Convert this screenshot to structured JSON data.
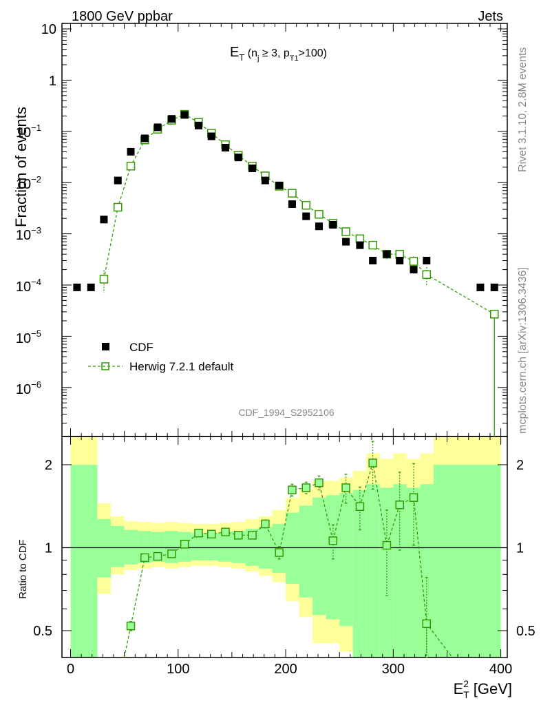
{
  "header": {
    "left": "1800 GeV ppbar",
    "right": "Jets"
  },
  "side_labels": {
    "rivet": "Rivet 3.1.10,  2.8M events",
    "source": "mcplots.cern.ch [arXiv:1306.3436]"
  },
  "analysis_id": "CDF_1994_S2952106",
  "colors": {
    "data": "#000000",
    "mc": "#339900",
    "band_inner": "#99ff99",
    "band_outer": "#ffff99"
  },
  "chart_data": [
    {
      "type": "scatter",
      "title": {
        "main": "E",
        "sub_t": "T",
        "open": " (n",
        "sub_j": "j",
        "cond": " ≥ 3, p",
        "sub_t1": "T1",
        "close": ">100)"
      },
      "ylabel": "Fraction of events",
      "yscale": "log",
      "ylim": [
        1e-07,
        12
      ],
      "xlim": [
        -8,
        406
      ],
      "ytick_labels": {
        "e1": "10",
        "e0": "1",
        "m1": "10",
        "m1e": "−1",
        "m2": "10",
        "m2e": "−2",
        "m3": "10",
        "m3e": "−3",
        "m4": "10",
        "m4e": "−4",
        "m5": "10",
        "m5e": "−5",
        "m6": "10",
        "m6e": "−6"
      },
      "legend": {
        "position": "bottom-left",
        "data_label": "CDF",
        "mc_label": "Herwig 7.2.1 default"
      },
      "series": [
        {
          "name": "CDF",
          "x": [
            6,
            19,
            31,
            44,
            56,
            69,
            81,
            94,
            106,
            119,
            131,
            144,
            156,
            169,
            181,
            194,
            206,
            219,
            231,
            244,
            256,
            269,
            281,
            294,
            306,
            319,
            331,
            381,
            394
          ],
          "y": [
            9e-05,
            9e-05,
            0.0019,
            0.011,
            0.04,
            0.073,
            0.12,
            0.175,
            0.21,
            0.13,
            0.08,
            0.048,
            0.031,
            0.019,
            0.011,
            0.0088,
            0.0038,
            0.0022,
            0.0014,
            0.0015,
            0.0007,
            0.0006,
            0.0003,
            0.0004,
            0.0003,
            0.0002,
            0.0003,
            9e-05,
            9e-05
          ]
        },
        {
          "name": "Herwig 7.2.1 default",
          "x": [
            31,
            44,
            56,
            69,
            81,
            94,
            106,
            119,
            131,
            144,
            156,
            169,
            181,
            194,
            206,
            219,
            231,
            244,
            256,
            269,
            281,
            294,
            306,
            319,
            331,
            394
          ],
          "y": [
            0.00013,
            0.0033,
            0.021,
            0.068,
            0.11,
            0.165,
            0.215,
            0.15,
            0.092,
            0.055,
            0.034,
            0.021,
            0.0135,
            0.0085,
            0.0062,
            0.0036,
            0.0024,
            0.0016,
            0.0011,
            0.0008,
            0.0006,
            0.0004,
            0.0004,
            0.00029,
            0.00016,
            2.7e-05
          ]
        }
      ]
    },
    {
      "type": "scatter",
      "ylabel": "Ratio to CDF",
      "xlabel": {
        "main": "E",
        "sup": "2",
        "sub": "T",
        "unit": " [GeV]"
      },
      "ylim": [
        0.42,
        2.4
      ],
      "xlim": [
        -8,
        406
      ],
      "xtick_labels": [
        "0",
        "100",
        "200",
        "300",
        "400"
      ],
      "xticks": [
        0,
        100,
        200,
        300,
        400
      ],
      "ytick_labels": [
        "0.5",
        "1",
        "2"
      ],
      "yticks": [
        0.5,
        1,
        2
      ],
      "bins": [
        0,
        25,
        37.5,
        50,
        62.5,
        75,
        87.5,
        100,
        112.5,
        125,
        137.5,
        150,
        162.5,
        175,
        187.5,
        200,
        212.5,
        225,
        237.5,
        250,
        262.5,
        275,
        287.5,
        300,
        312.5,
        325,
        337.5,
        375,
        400
      ],
      "band_outer": [
        {
          "lo": 0.3,
          "hi": 3.0
        },
        {
          "lo": 0.68,
          "hi": 1.45
        },
        {
          "lo": 0.8,
          "hi": 1.3
        },
        {
          "lo": 0.83,
          "hi": 1.25
        },
        {
          "lo": 0.84,
          "hi": 1.24
        },
        {
          "lo": 0.85,
          "hi": 1.23
        },
        {
          "lo": 0.84,
          "hi": 1.24
        },
        {
          "lo": 0.85,
          "hi": 1.23
        },
        {
          "lo": 0.86,
          "hi": 1.22
        },
        {
          "lo": 0.86,
          "hi": 1.22
        },
        {
          "lo": 0.85,
          "hi": 1.23
        },
        {
          "lo": 0.84,
          "hi": 1.24
        },
        {
          "lo": 0.82,
          "hi": 1.27
        },
        {
          "lo": 0.79,
          "hi": 1.3
        },
        {
          "lo": 0.75,
          "hi": 1.37
        },
        {
          "lo": 0.64,
          "hi": 1.52
        },
        {
          "lo": 0.56,
          "hi": 1.62
        },
        {
          "lo": 0.45,
          "hi": 1.75
        },
        {
          "lo": 0.45,
          "hi": 1.75
        },
        {
          "lo": 0.42,
          "hi": 1.8
        },
        {
          "lo": 0.3,
          "hi": 1.9
        },
        {
          "lo": 0.3,
          "hi": 2.2
        },
        {
          "lo": 0.3,
          "hi": 2.1
        },
        {
          "lo": 0.3,
          "hi": 2.2
        },
        {
          "lo": 0.3,
          "hi": 2.1
        },
        {
          "lo": 0.3,
          "hi": 2.2
        },
        {
          "lo": 0.3,
          "hi": 3.0
        },
        {
          "lo": 0.3,
          "hi": 3.0
        }
      ],
      "band_inner": [
        {
          "lo": 0.3,
          "hi": 2.0
        },
        {
          "lo": 0.78,
          "hi": 1.27
        },
        {
          "lo": 0.85,
          "hi": 1.2
        },
        {
          "lo": 0.87,
          "hi": 1.16
        },
        {
          "lo": 0.88,
          "hi": 1.15
        },
        {
          "lo": 0.89,
          "hi": 1.14
        },
        {
          "lo": 0.88,
          "hi": 1.15
        },
        {
          "lo": 0.89,
          "hi": 1.14
        },
        {
          "lo": 0.9,
          "hi": 1.13
        },
        {
          "lo": 0.9,
          "hi": 1.13
        },
        {
          "lo": 0.89,
          "hi": 1.14
        },
        {
          "lo": 0.88,
          "hi": 1.15
        },
        {
          "lo": 0.86,
          "hi": 1.17
        },
        {
          "lo": 0.84,
          "hi": 1.19
        },
        {
          "lo": 0.81,
          "hi": 1.22
        },
        {
          "lo": 0.74,
          "hi": 1.34
        },
        {
          "lo": 0.66,
          "hi": 1.42
        },
        {
          "lo": 0.57,
          "hi": 1.52
        },
        {
          "lo": 0.55,
          "hi": 1.55
        },
        {
          "lo": 0.52,
          "hi": 1.58
        },
        {
          "lo": 0.4,
          "hi": 1.62
        },
        {
          "lo": 0.3,
          "hi": 1.7
        },
        {
          "lo": 0.3,
          "hi": 1.65
        },
        {
          "lo": 0.3,
          "hi": 1.7
        },
        {
          "lo": 0.3,
          "hi": 1.65
        },
        {
          "lo": 0.3,
          "hi": 1.7
        },
        {
          "lo": 0.3,
          "hi": 2.0
        },
        {
          "lo": 0.3,
          "hi": 2.0
        }
      ],
      "series": [
        {
          "name": "Herwig 7.2.1 default / CDF",
          "x": [
            56,
            69,
            81,
            94,
            106,
            119,
            131,
            144,
            156,
            169,
            181,
            194,
            206,
            219,
            231,
            244,
            256,
            269,
            281,
            294,
            306,
            319,
            331
          ],
          "y": [
            0.52,
            0.92,
            0.93,
            0.95,
            1.03,
            1.13,
            1.12,
            1.14,
            1.11,
            1.11,
            1.22,
            0.96,
            1.62,
            1.65,
            1.72,
            1.06,
            1.65,
            1.41,
            2.03,
            1.02,
            1.43,
            1.52,
            0.53
          ],
          "err_up": [
            0.02,
            0.02,
            0.02,
            0.02,
            0.02,
            0.02,
            0.02,
            0.02,
            0.02,
            0.03,
            0.04,
            0.05,
            0.08,
            0.08,
            0.1,
            0.15,
            0.2,
            0.25,
            0.4,
            0.35,
            0.45,
            0.5,
            0.25
          ],
          "err_dn": [
            0.02,
            0.02,
            0.02,
            0.02,
            0.02,
            0.02,
            0.02,
            0.02,
            0.02,
            0.03,
            0.04,
            0.05,
            0.08,
            0.08,
            0.1,
            0.15,
            0.2,
            0.25,
            0.4,
            0.35,
            0.45,
            0.5,
            0.15
          ]
        }
      ]
    }
  ]
}
